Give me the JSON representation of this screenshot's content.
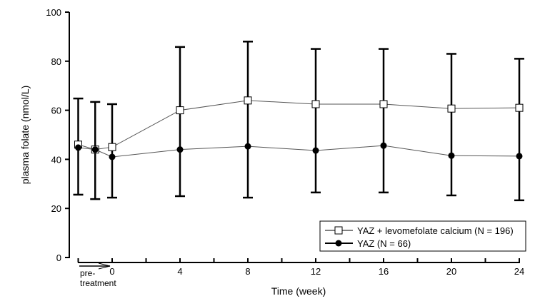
{
  "chart_data": {
    "type": "line",
    "title": "",
    "xlabel": "Time (week)",
    "ylabel": "plasma folate (nmol/L)",
    "xlim": [
      -2,
      24
    ],
    "ylim": [
      0,
      100
    ],
    "yticks": [
      0,
      20,
      40,
      60,
      80,
      100
    ],
    "xticks": [
      0,
      4,
      8,
      12,
      16,
      20,
      24
    ],
    "pretreatment_label_1": "pre-",
    "pretreatment_label_2": "treatment",
    "x": [
      -2,
      -1,
      0,
      4,
      8,
      12,
      16,
      20,
      24
    ],
    "series": [
      {
        "name": "YAZ + levomefolate calcium (N = 196)",
        "marker": "open-square",
        "values": [
          46,
          44,
          45,
          60,
          64,
          62.5,
          62.5,
          60.7,
          61
        ]
      },
      {
        "name": "YAZ (N = 66)",
        "marker": "filled-circle",
        "values": [
          44.8,
          44,
          41,
          44,
          45.3,
          43.6,
          45.6,
          41.5,
          41.3
        ]
      }
    ],
    "error_bars": {
      "upper": [
        64.8,
        63.4,
        62.5,
        85.8,
        88,
        85,
        85,
        83,
        81
      ],
      "lower": [
        25.6,
        23.8,
        24.4,
        25,
        24.4,
        26.5,
        26.5,
        25.3,
        23.3
      ]
    },
    "legend_position": "bottom-right",
    "grid": false
  }
}
